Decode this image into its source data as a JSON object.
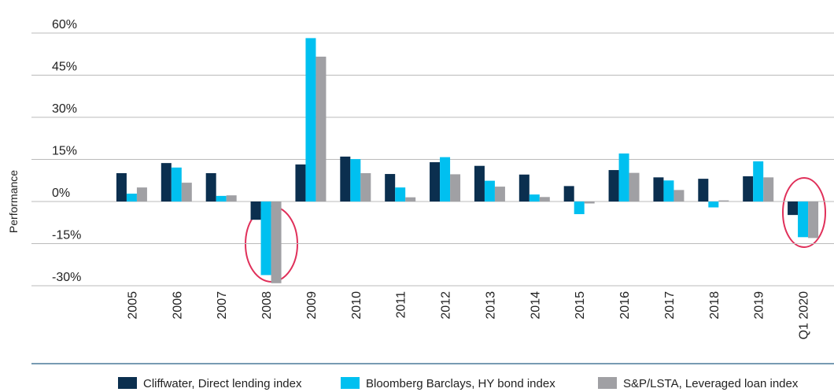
{
  "chart_data": {
    "type": "bar",
    "ylabel": "Performance",
    "categories": [
      "2005",
      "2006",
      "2007",
      "2008",
      "2009",
      "2010",
      "2011",
      "2012",
      "2013",
      "2014",
      "2015",
      "2016",
      "2017",
      "2018",
      "2019",
      "Q1 2020"
    ],
    "series": [
      {
        "name": "Cliffwater, Direct lending index",
        "color": "#0b2f4f",
        "values": [
          10.1,
          13.7,
          10.1,
          -6.5,
          13.2,
          16.0,
          9.8,
          14.0,
          12.7,
          9.6,
          5.5,
          11.2,
          8.6,
          8.1,
          9.0,
          -4.8
        ]
      },
      {
        "name": "Bloomberg Barclays, HY bond index",
        "color": "#00c0f0",
        "values": [
          2.8,
          12.1,
          2.0,
          -26.2,
          58.2,
          15.1,
          5.0,
          15.8,
          7.4,
          2.5,
          -4.5,
          17.1,
          7.5,
          -2.1,
          14.3,
          -12.7
        ]
      },
      {
        "name": "S&P/LSTA, Leveraged loan index",
        "color": "#a0a0a4",
        "values": [
          5.0,
          6.7,
          2.2,
          -29.1,
          51.6,
          10.1,
          1.5,
          9.7,
          5.3,
          1.6,
          -0.7,
          10.2,
          4.1,
          0.4,
          8.6,
          -13.0
        ]
      }
    ],
    "ylim": [
      -30,
      60
    ],
    "yticks": [
      {
        "value": 60,
        "label": "60%"
      },
      {
        "value": 45,
        "label": "45%"
      },
      {
        "value": 30,
        "label": "30%"
      },
      {
        "value": 15,
        "label": "15%"
      },
      {
        "value": 0,
        "label": "0%"
      },
      {
        "value": -15,
        "label": "-15%"
      },
      {
        "value": -30,
        "label": "-30%"
      }
    ],
    "grid": true
  }
}
